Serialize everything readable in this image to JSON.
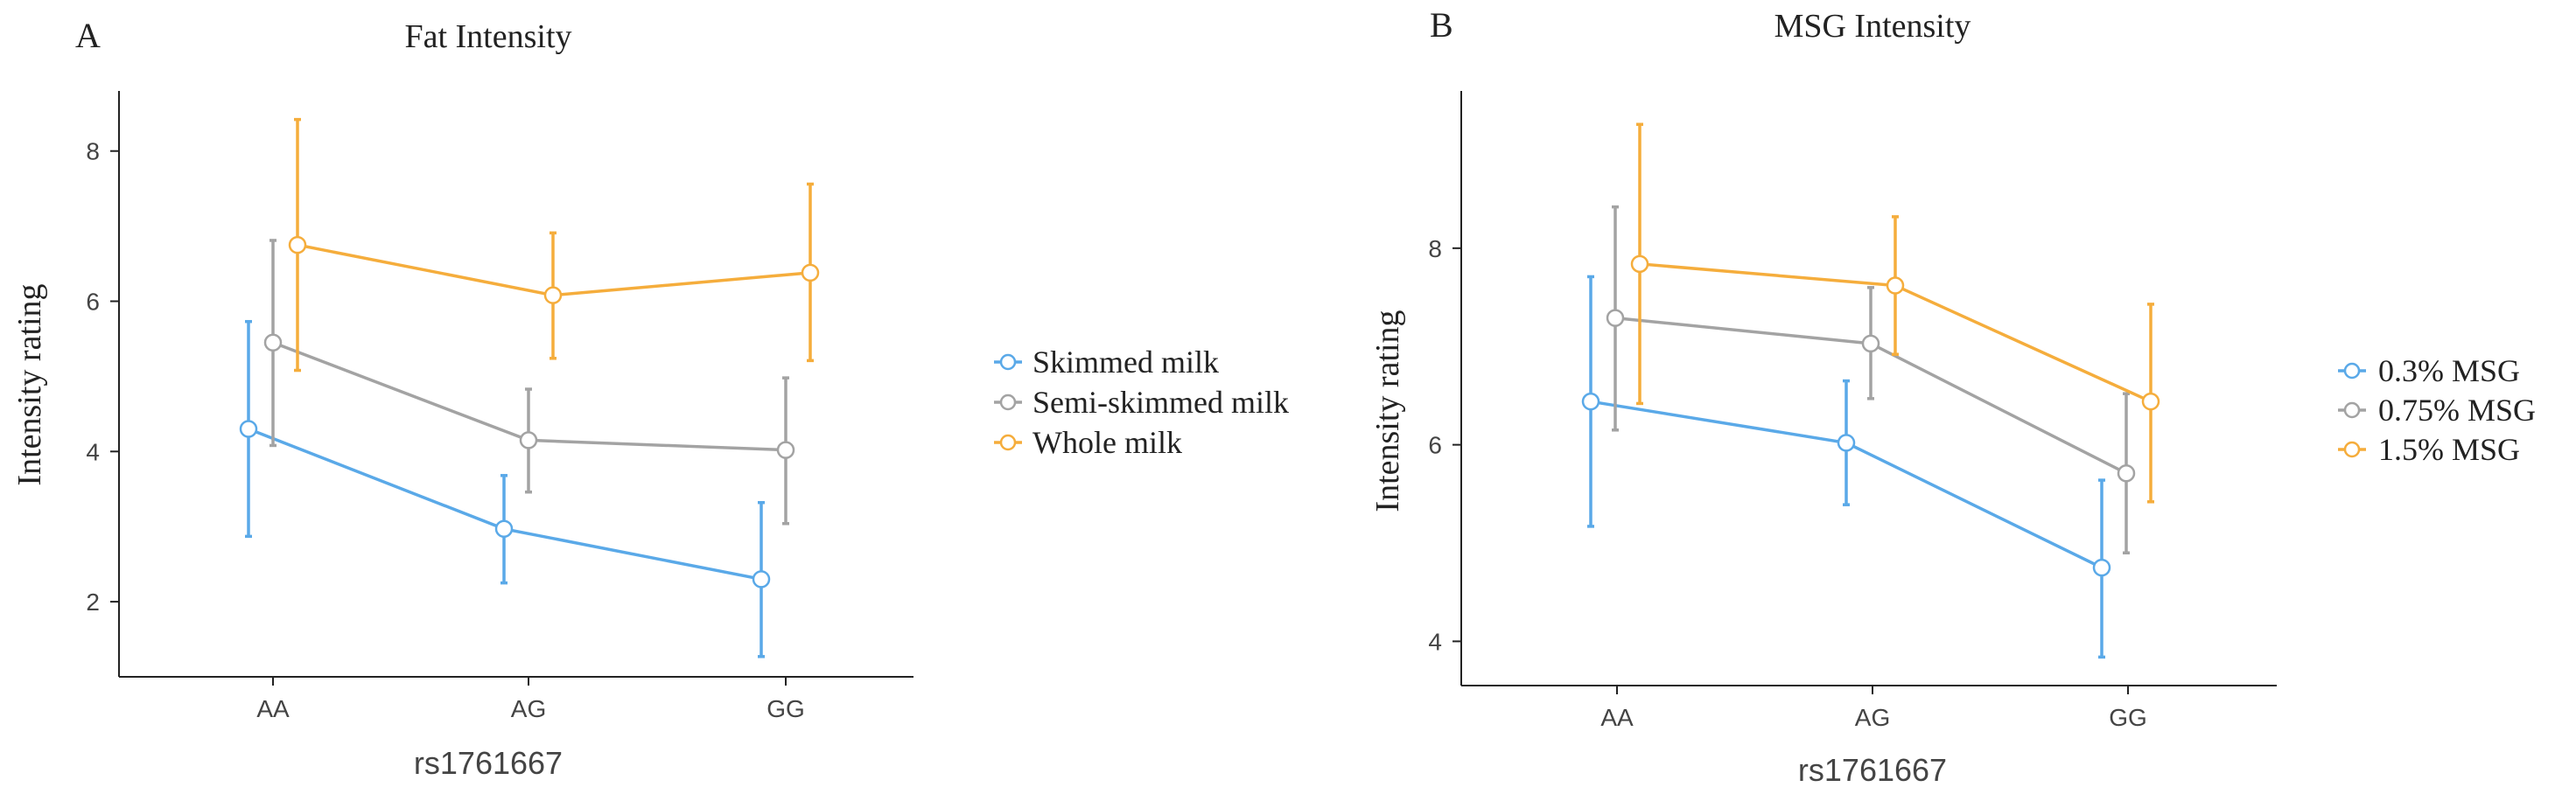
{
  "colors": {
    "blue": "#5aa9e8",
    "grey": "#a3a3a3",
    "orange": "#f5ad3c",
    "axis": "#222222",
    "text": "#222222"
  },
  "chart_data": [
    {
      "type": "line",
      "panel_label": "A",
      "title": "Fat Intensity",
      "xlabel": "rs1761667",
      "ylabel": "Intensity rating",
      "categories": [
        "AA",
        "AG",
        "GG"
      ],
      "ylim": [
        1.0,
        8.8
      ],
      "yticks": [
        2,
        4,
        6,
        8
      ],
      "ytick_labels": [
        "2",
        "4",
        "6",
        "8"
      ],
      "grid": false,
      "legend_position": "right",
      "series": [
        {
          "name": "Skimmed milk",
          "color_key": "blue",
          "values": [
            4.3,
            2.97,
            2.3
          ],
          "err_low": [
            2.87,
            2.25,
            1.27
          ],
          "err_high": [
            5.73,
            3.68,
            3.32
          ]
        },
        {
          "name": "Semi-skimmed milk",
          "color_key": "grey",
          "values": [
            5.45,
            4.15,
            4.02
          ],
          "err_low": [
            4.08,
            3.46,
            3.04
          ],
          "err_high": [
            6.81,
            4.83,
            4.98
          ]
        },
        {
          "name": "Whole milk",
          "color_key": "orange",
          "values": [
            6.75,
            6.08,
            6.38
          ],
          "err_low": [
            5.08,
            5.24,
            5.21
          ],
          "err_high": [
            8.42,
            6.91,
            7.56
          ]
        }
      ]
    },
    {
      "type": "line",
      "panel_label": "B",
      "title": "MSG Intensity",
      "xlabel": "rs1761667",
      "ylabel": "Intensity rating",
      "categories": [
        "AA",
        "AG",
        "GG"
      ],
      "ylim": [
        3.55,
        9.6
      ],
      "yticks": [
        4,
        6,
        8
      ],
      "ytick_labels": [
        "4",
        "6",
        "8"
      ],
      "grid": false,
      "legend_position": "right",
      "series": [
        {
          "name": "0.3% MSG",
          "color_key": "blue",
          "values": [
            6.44,
            6.02,
            4.75
          ],
          "err_low": [
            5.17,
            5.39,
            3.84
          ],
          "err_high": [
            7.71,
            6.65,
            5.64
          ]
        },
        {
          "name": "0.75% MSG",
          "color_key": "grey",
          "values": [
            7.29,
            7.03,
            5.71
          ],
          "err_low": [
            6.15,
            6.47,
            4.9
          ],
          "err_high": [
            8.42,
            7.6,
            6.52
          ]
        },
        {
          "name": "1.5% MSG",
          "color_key": "orange",
          "values": [
            7.84,
            7.62,
            6.44
          ],
          "err_low": [
            6.42,
            6.92,
            5.42
          ],
          "err_high": [
            9.26,
            8.32,
            7.43
          ]
        }
      ]
    }
  ]
}
